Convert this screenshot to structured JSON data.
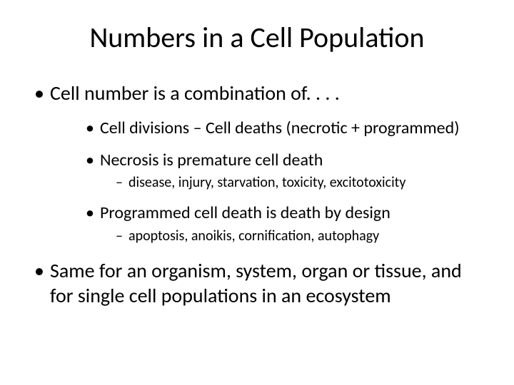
{
  "background_color": "#ffffff",
  "text_color": "#000000",
  "font_family": "Calibri",
  "title": {
    "text": "Numbers in a Cell Population",
    "fontsize": 40,
    "weight": 400,
    "align": "center"
  },
  "bullets": {
    "lvl1_fontsize": 28,
    "lvl2_fontsize": 24,
    "lvl3_fontsize": 20,
    "lvl1_marker": "•",
    "lvl2_marker": "•",
    "lvl3_marker": "–",
    "items": [
      {
        "text": "Cell number is a combination of. . . .",
        "children": [
          {
            "text": "Cell divisions – Cell deaths (necrotic + programmed)",
            "children": []
          },
          {
            "text": "Necrosis is premature cell death",
            "children": [
              {
                "text": "disease, injury, starvation, toxicity, excitotoxicity"
              }
            ]
          },
          {
            "text": "Programmed cell death is death by design",
            "children": [
              {
                "text": "apoptosis, anoikis, cornification, autophagy"
              }
            ]
          }
        ]
      },
      {
        "text": "Same for an organism, system, organ or tissue, and for single cell populations in an ecosystem",
        "children": []
      }
    ]
  }
}
